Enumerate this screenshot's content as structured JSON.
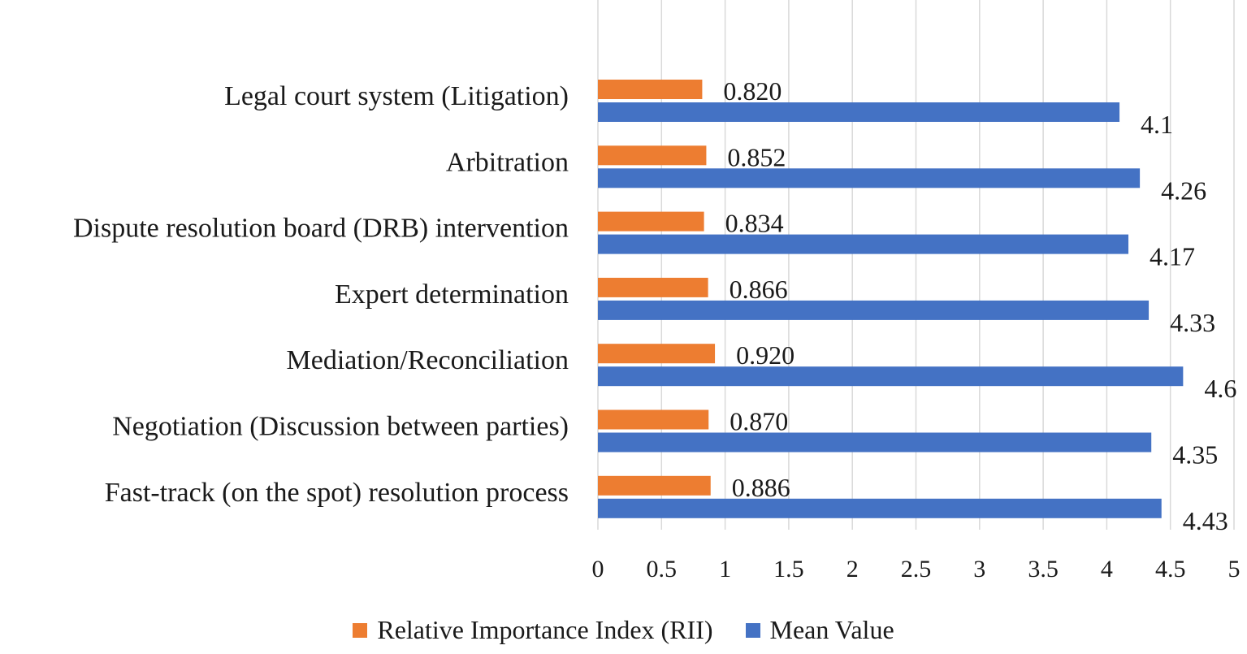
{
  "chart_data": {
    "type": "bar",
    "orientation": "horizontal",
    "categories": [
      "Legal court system (Litigation)",
      "Arbitration",
      "Dispute resolution board (DRB) intervention",
      "Expert determination",
      "Mediation/Reconciliation",
      "Negotiation (Discussion between parties)",
      "Fast-track (on the spot) resolution process"
    ],
    "series": [
      {
        "name": "Relative Importance Index (RII)",
        "color": "#ED7D31",
        "values": [
          0.82,
          0.852,
          0.834,
          0.866,
          0.92,
          0.87,
          0.886
        ],
        "labels": [
          "0.820",
          "0.852",
          "0.834",
          "0.866",
          "0.920",
          "0.870",
          "0.886"
        ]
      },
      {
        "name": "Mean Value",
        "color": "#4472C4",
        "values": [
          4.1,
          4.26,
          4.17,
          4.33,
          4.6,
          4.35,
          4.43
        ],
        "labels": [
          "4.1",
          "4.26",
          "4.17",
          "4.33",
          "4.6",
          "4.35",
          "4.43"
        ]
      }
    ],
    "xlim": [
      0,
      5
    ],
    "xticks": [
      0,
      0.5,
      1,
      1.5,
      2,
      2.5,
      3,
      3.5,
      4,
      4.5,
      5
    ],
    "xtick_labels": [
      "0",
      "0.5",
      "1",
      "1.5",
      "2",
      "2.5",
      "3",
      "3.5",
      "4",
      "4.5",
      "5"
    ],
    "grid": "vertical",
    "legend_position": "bottom",
    "gridline_color": "#D9D9D9"
  }
}
